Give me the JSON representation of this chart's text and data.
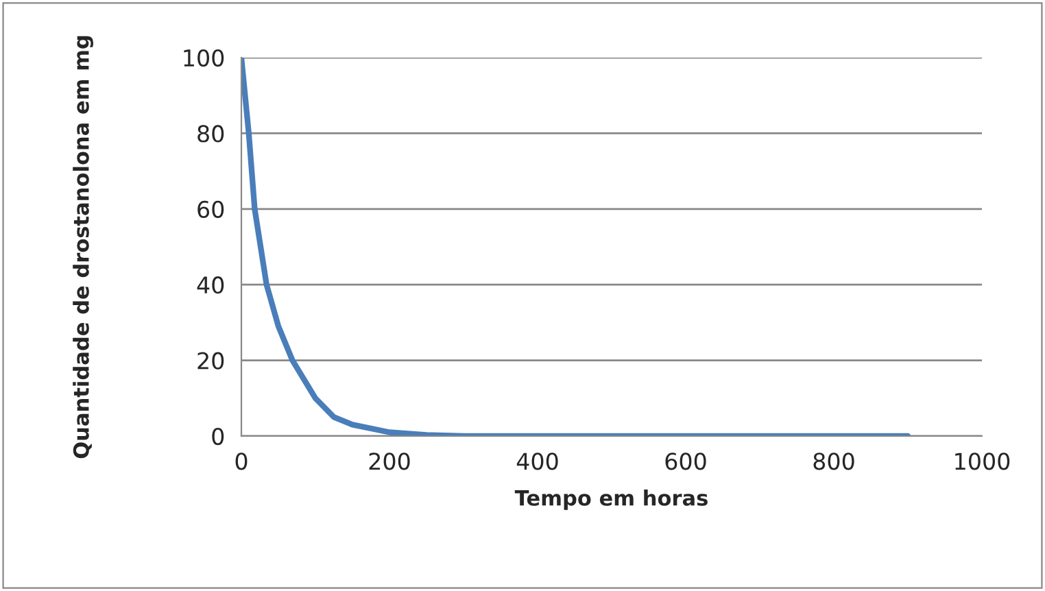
{
  "chart_data": {
    "type": "line",
    "xlabel": "Tempo em horas",
    "ylabel": "Quantidade de drostanolona em mg",
    "xlim": [
      0,
      1000
    ],
    "xticks": [
      0,
      200,
      400,
      600,
      800,
      1000
    ],
    "ylim": [
      0,
      100
    ],
    "yticks": [
      0,
      20,
      40,
      60,
      80,
      100
    ],
    "grid": "y",
    "marker": "none",
    "line_style": "solid",
    "series": [
      {
        "color": "#4a7ebb",
        "x": [
          0,
          10,
          18,
          34,
          50,
          69,
          100,
          125,
          150,
          200,
          250,
          300,
          400,
          600,
          900
        ],
        "values": [
          100,
          80,
          60,
          40,
          29,
          20,
          10,
          5,
          3,
          1,
          0.3,
          0,
          0,
          0,
          0
        ]
      }
    ]
  }
}
